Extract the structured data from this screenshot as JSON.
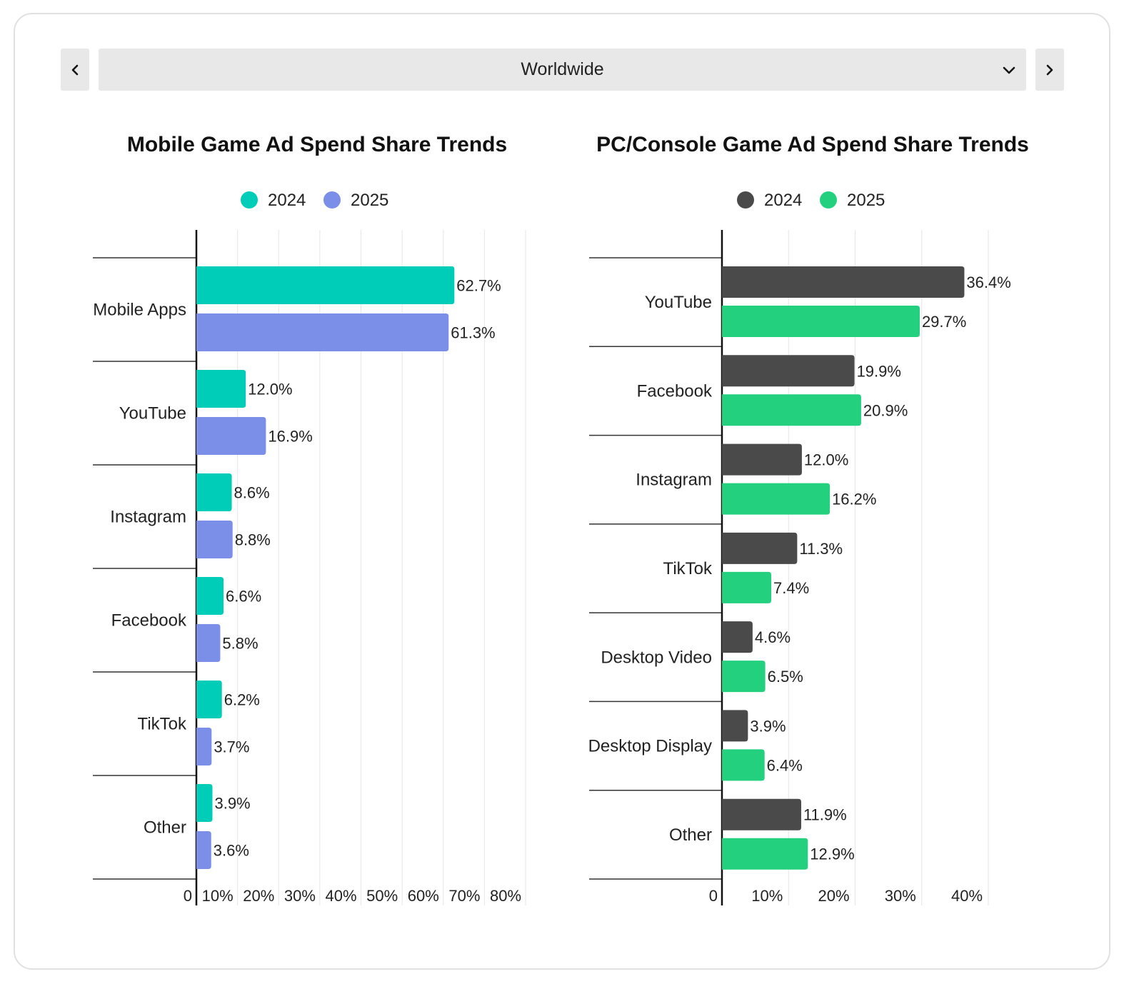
{
  "region_selector": {
    "selected": "Worldwide",
    "prev_icon": "chevron-left-icon",
    "next_icon": "chevron-right-icon",
    "dropdown_icon": "chevron-down-icon"
  },
  "chart_data": [
    {
      "type": "bar",
      "orientation": "horizontal",
      "title": "Mobile Game Ad Spend Share Trends",
      "categories": [
        "Mobile Apps",
        "YouTube",
        "Instagram",
        "Facebook",
        "TikTok",
        "Other"
      ],
      "series": [
        {
          "name": "2024",
          "color": "#00cdb8",
          "values": [
            62.7,
            12.0,
            8.6,
            6.6,
            6.2,
            3.9
          ],
          "labels": [
            "62.7%",
            "12.0%",
            "8.6%",
            "6.6%",
            "6.2%",
            "3.9%"
          ]
        },
        {
          "name": "2025",
          "color": "#7b8fe8",
          "values": [
            61.3,
            16.9,
            8.8,
            5.8,
            3.7,
            3.6
          ],
          "labels": [
            "61.3%",
            "16.9%",
            "8.8%",
            "5.8%",
            "3.7%",
            "3.6%"
          ]
        }
      ],
      "x_ticks": [
        "0",
        "10%",
        "20%",
        "30%",
        "40%",
        "50%",
        "60%",
        "70%",
        "80%"
      ],
      "xlim": [
        0,
        80
      ],
      "legend_position": "top-center",
      "grid": true
    },
    {
      "type": "bar",
      "orientation": "horizontal",
      "title": "PC/Console Game Ad Spend Share Trends",
      "categories": [
        "YouTube",
        "Facebook",
        "Instagram",
        "TikTok",
        "Desktop Video",
        "Desktop Display",
        "Other"
      ],
      "series": [
        {
          "name": "2024",
          "color": "#4a4a4a",
          "values": [
            36.4,
            19.9,
            12.0,
            11.3,
            4.6,
            3.9,
            11.9
          ],
          "labels": [
            "36.4%",
            "19.9%",
            "12.0%",
            "11.3%",
            "4.6%",
            "3.9%",
            "11.9%"
          ]
        },
        {
          "name": "2025",
          "color": "#22d07e",
          "values": [
            29.7,
            20.9,
            16.2,
            7.4,
            6.5,
            6.4,
            12.9
          ],
          "labels": [
            "29.7%",
            "20.9%",
            "16.2%",
            "7.4%",
            "6.5%",
            "6.4%",
            "12.9%"
          ]
        }
      ],
      "x_ticks": [
        "0",
        "10%",
        "20%",
        "30%",
        "40%"
      ],
      "xlim": [
        0,
        40
      ],
      "legend_position": "top-center",
      "grid": true
    }
  ]
}
